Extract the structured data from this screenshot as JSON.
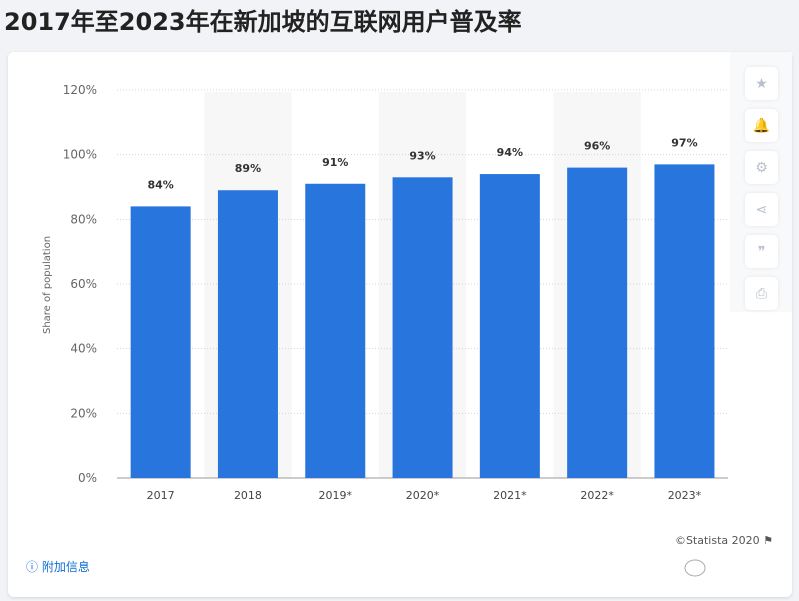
{
  "title": "2017年至2023年在新加坡的互联网用户普及率",
  "toolbar": [
    {
      "icon": "star-icon",
      "g": "★"
    },
    {
      "icon": "bell-icon",
      "g": "🔔"
    },
    {
      "icon": "gear-icon",
      "g": "⚙"
    },
    {
      "icon": "share-icon",
      "g": "⋖"
    },
    {
      "icon": "quote-icon",
      "g": "❞"
    },
    {
      "icon": "print-icon",
      "g": "⎙"
    }
  ],
  "credit": "©Statista 2020",
  "info_link": "附加信息",
  "chart_data": {
    "type": "bar",
    "categories": [
      "2017",
      "2018",
      "2019*",
      "2020*",
      "2021*",
      "2022*",
      "2023*"
    ],
    "values": [
      84,
      89,
      91,
      93,
      94,
      96,
      97
    ],
    "data_labels": [
      "84%",
      "89%",
      "91%",
      "93%",
      "94%",
      "96%",
      "97%"
    ],
    "ylabel": "Share of population",
    "ylim": [
      0,
      120
    ],
    "yticks": [
      "0%",
      "20%",
      "40%",
      "60%",
      "80%",
      "100%",
      "120%"
    ],
    "grid": true,
    "bar_color": "#2876dd"
  }
}
